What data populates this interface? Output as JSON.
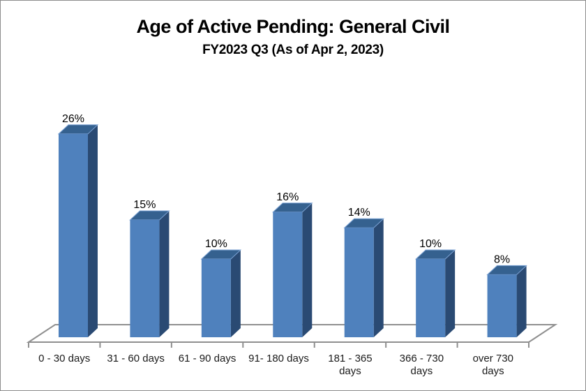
{
  "frame": {
    "background": "#ffffff",
    "border_color": "#8c8c8c"
  },
  "chart_data": {
    "type": "bar",
    "style": "3d-column",
    "title": "Age of Active Pending: General Civil",
    "subtitle": "FY2023 Q3 (As of Apr 2, 2023)",
    "categories": [
      "0 - 30 days",
      "31 - 60 days",
      "61 - 90 days",
      "91- 180 days",
      "181 - 365 days",
      "366 - 730 days",
      "over 730 days"
    ],
    "values": [
      26,
      15,
      10,
      16,
      14,
      10,
      8
    ],
    "value_labels": [
      "26%",
      "15%",
      "10%",
      "16%",
      "14%",
      "10%",
      "8%"
    ],
    "xlabel": "",
    "ylabel": "",
    "legend": "none",
    "gridlines": "none",
    "y_axis_visible": false,
    "colors": {
      "bar_front": "#4f81bd",
      "bar_top": "#35618f",
      "bar_side": "#2a4a73",
      "bar_edge_highlight": "#7ba2d4",
      "axis_line": "#8f8f8f",
      "value_label": "#000000",
      "category_label": "#1a1a1a"
    }
  }
}
